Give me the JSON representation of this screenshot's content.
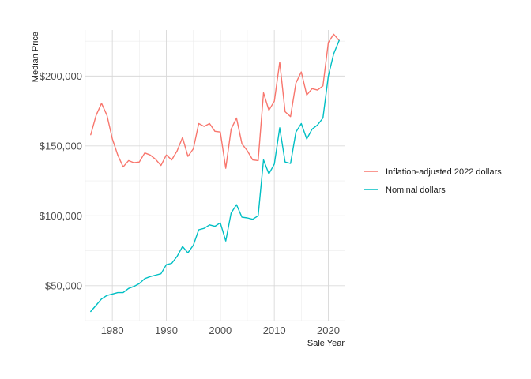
{
  "chart_data": {
    "type": "line",
    "xlabel": "Sale Year",
    "ylabel": "Median Price",
    "xlim": [
      1975,
      2023
    ],
    "ylim": [
      25000,
      233000
    ],
    "x_ticks": [
      1980,
      1990,
      2000,
      2010,
      2020
    ],
    "y_ticks": [
      50000,
      100000,
      150000,
      200000
    ],
    "y_tick_labels": [
      "$50,000",
      "$100,000",
      "$150,000",
      "$200,000"
    ],
    "grid": true,
    "legend_position": "right",
    "x": [
      1976,
      1977,
      1978,
      1979,
      1980,
      1981,
      1982,
      1983,
      1984,
      1985,
      1986,
      1987,
      1988,
      1989,
      1990,
      1991,
      1992,
      1993,
      1994,
      1995,
      1996,
      1997,
      1998,
      1999,
      2000,
      2001,
      2002,
      2003,
      2004,
      2005,
      2006,
      2007,
      2008,
      2009,
      2010,
      2011,
      2012,
      2013,
      2014,
      2015,
      2016,
      2017,
      2018,
      2019,
      2020,
      2021,
      2022
    ],
    "series": [
      {
        "name": "Inflation-adjusted 2022 dollars",
        "color": "#F8766D",
        "values": [
          158000,
          172000,
          180500,
          172000,
          155000,
          143500,
          135000,
          139500,
          138000,
          138500,
          145000,
          143500,
          140500,
          136000,
          143500,
          140000,
          146500,
          156000,
          142500,
          148000,
          166000,
          164000,
          166000,
          160500,
          160000,
          134000,
          162000,
          170000,
          151500,
          146500,
          140000,
          139500,
          188000,
          175500,
          182000,
          210000,
          174500,
          171000,
          195000,
          203000,
          186500,
          191000,
          190000,
          193000,
          224000,
          230000,
          225500
        ]
      },
      {
        "name": "Nominal dollars",
        "color": "#00BFC4",
        "values": [
          31500,
          36000,
          40500,
          43000,
          44000,
          45000,
          45000,
          48000,
          49500,
          51500,
          55000,
          56500,
          57500,
          58500,
          65000,
          66000,
          71000,
          78000,
          73500,
          79000,
          90000,
          91000,
          93500,
          92500,
          95000,
          82000,
          102000,
          108000,
          99000,
          98500,
          97500,
          100000,
          140000,
          130000,
          137000,
          163000,
          138500,
          137500,
          160000,
          166000,
          155000,
          162000,
          165000,
          170000,
          200000,
          216000,
          225500
        ]
      }
    ]
  }
}
